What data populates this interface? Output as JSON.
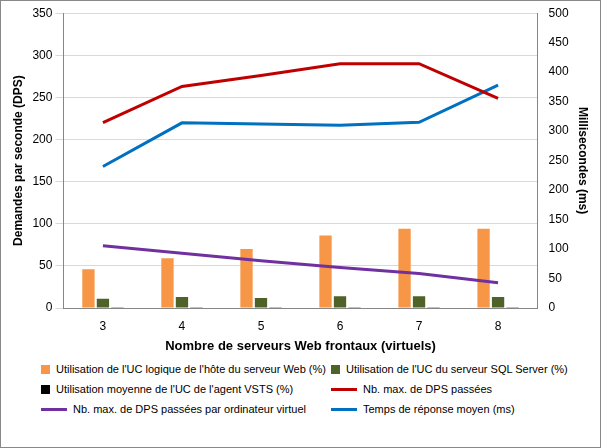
{
  "chart_data": {
    "type": "bar",
    "x_label": "Nombre de serveurs Web frontaux (virtuels)",
    "y_label": "Demandes par seconde (DPS)",
    "y2_label": "Millisecondes (ms)",
    "categories": [
      "3",
      "4",
      "5",
      "6",
      "7",
      "8"
    ],
    "ylim": [
      0,
      350
    ],
    "yticks": [
      0,
      50,
      100,
      150,
      200,
      250,
      300,
      350
    ],
    "y2lim": [
      0,
      500
    ],
    "y2ticks": [
      0,
      50,
      100,
      150,
      200,
      250,
      300,
      350,
      400,
      450,
      500
    ],
    "grid": true,
    "legend": "bottom",
    "series": [
      {
        "name": "Utilisation de l'UC logique de l'hôte du serveur Web (%)",
        "type": "bar",
        "color": "#f79646",
        "values": [
          46,
          59,
          70,
          86,
          94,
          94
        ]
      },
      {
        "name": "Utilisation de l'UC du serveur SQL Server (%)",
        "type": "bar",
        "color": "#4f6228",
        "values": [
          11,
          13,
          12,
          14,
          14,
          13
        ]
      },
      {
        "name": "Utilisation moyenne de l'UC de l'agent VSTS (%)",
        "type": "bar",
        "color": "#000000",
        "values": [
          1,
          1,
          1,
          1,
          1,
          1
        ]
      },
      {
        "name": "Nb. max. de DPS passées",
        "type": "line",
        "color": "#c00000",
        "values": [
          220,
          263,
          276,
          290,
          290,
          249
        ]
      },
      {
        "name": "Nb. max. de DPS passées par ordinateur virtuel",
        "type": "line",
        "color": "#7030a0",
        "values": [
          74,
          65,
          56,
          48,
          41,
          30
        ]
      },
      {
        "name": "Temps de réponse moyen (ms)",
        "type": "line",
        "color": "#0070c0",
        "axis": "y2",
        "values": [
          240,
          314,
          312,
          310,
          315,
          378
        ]
      }
    ]
  }
}
